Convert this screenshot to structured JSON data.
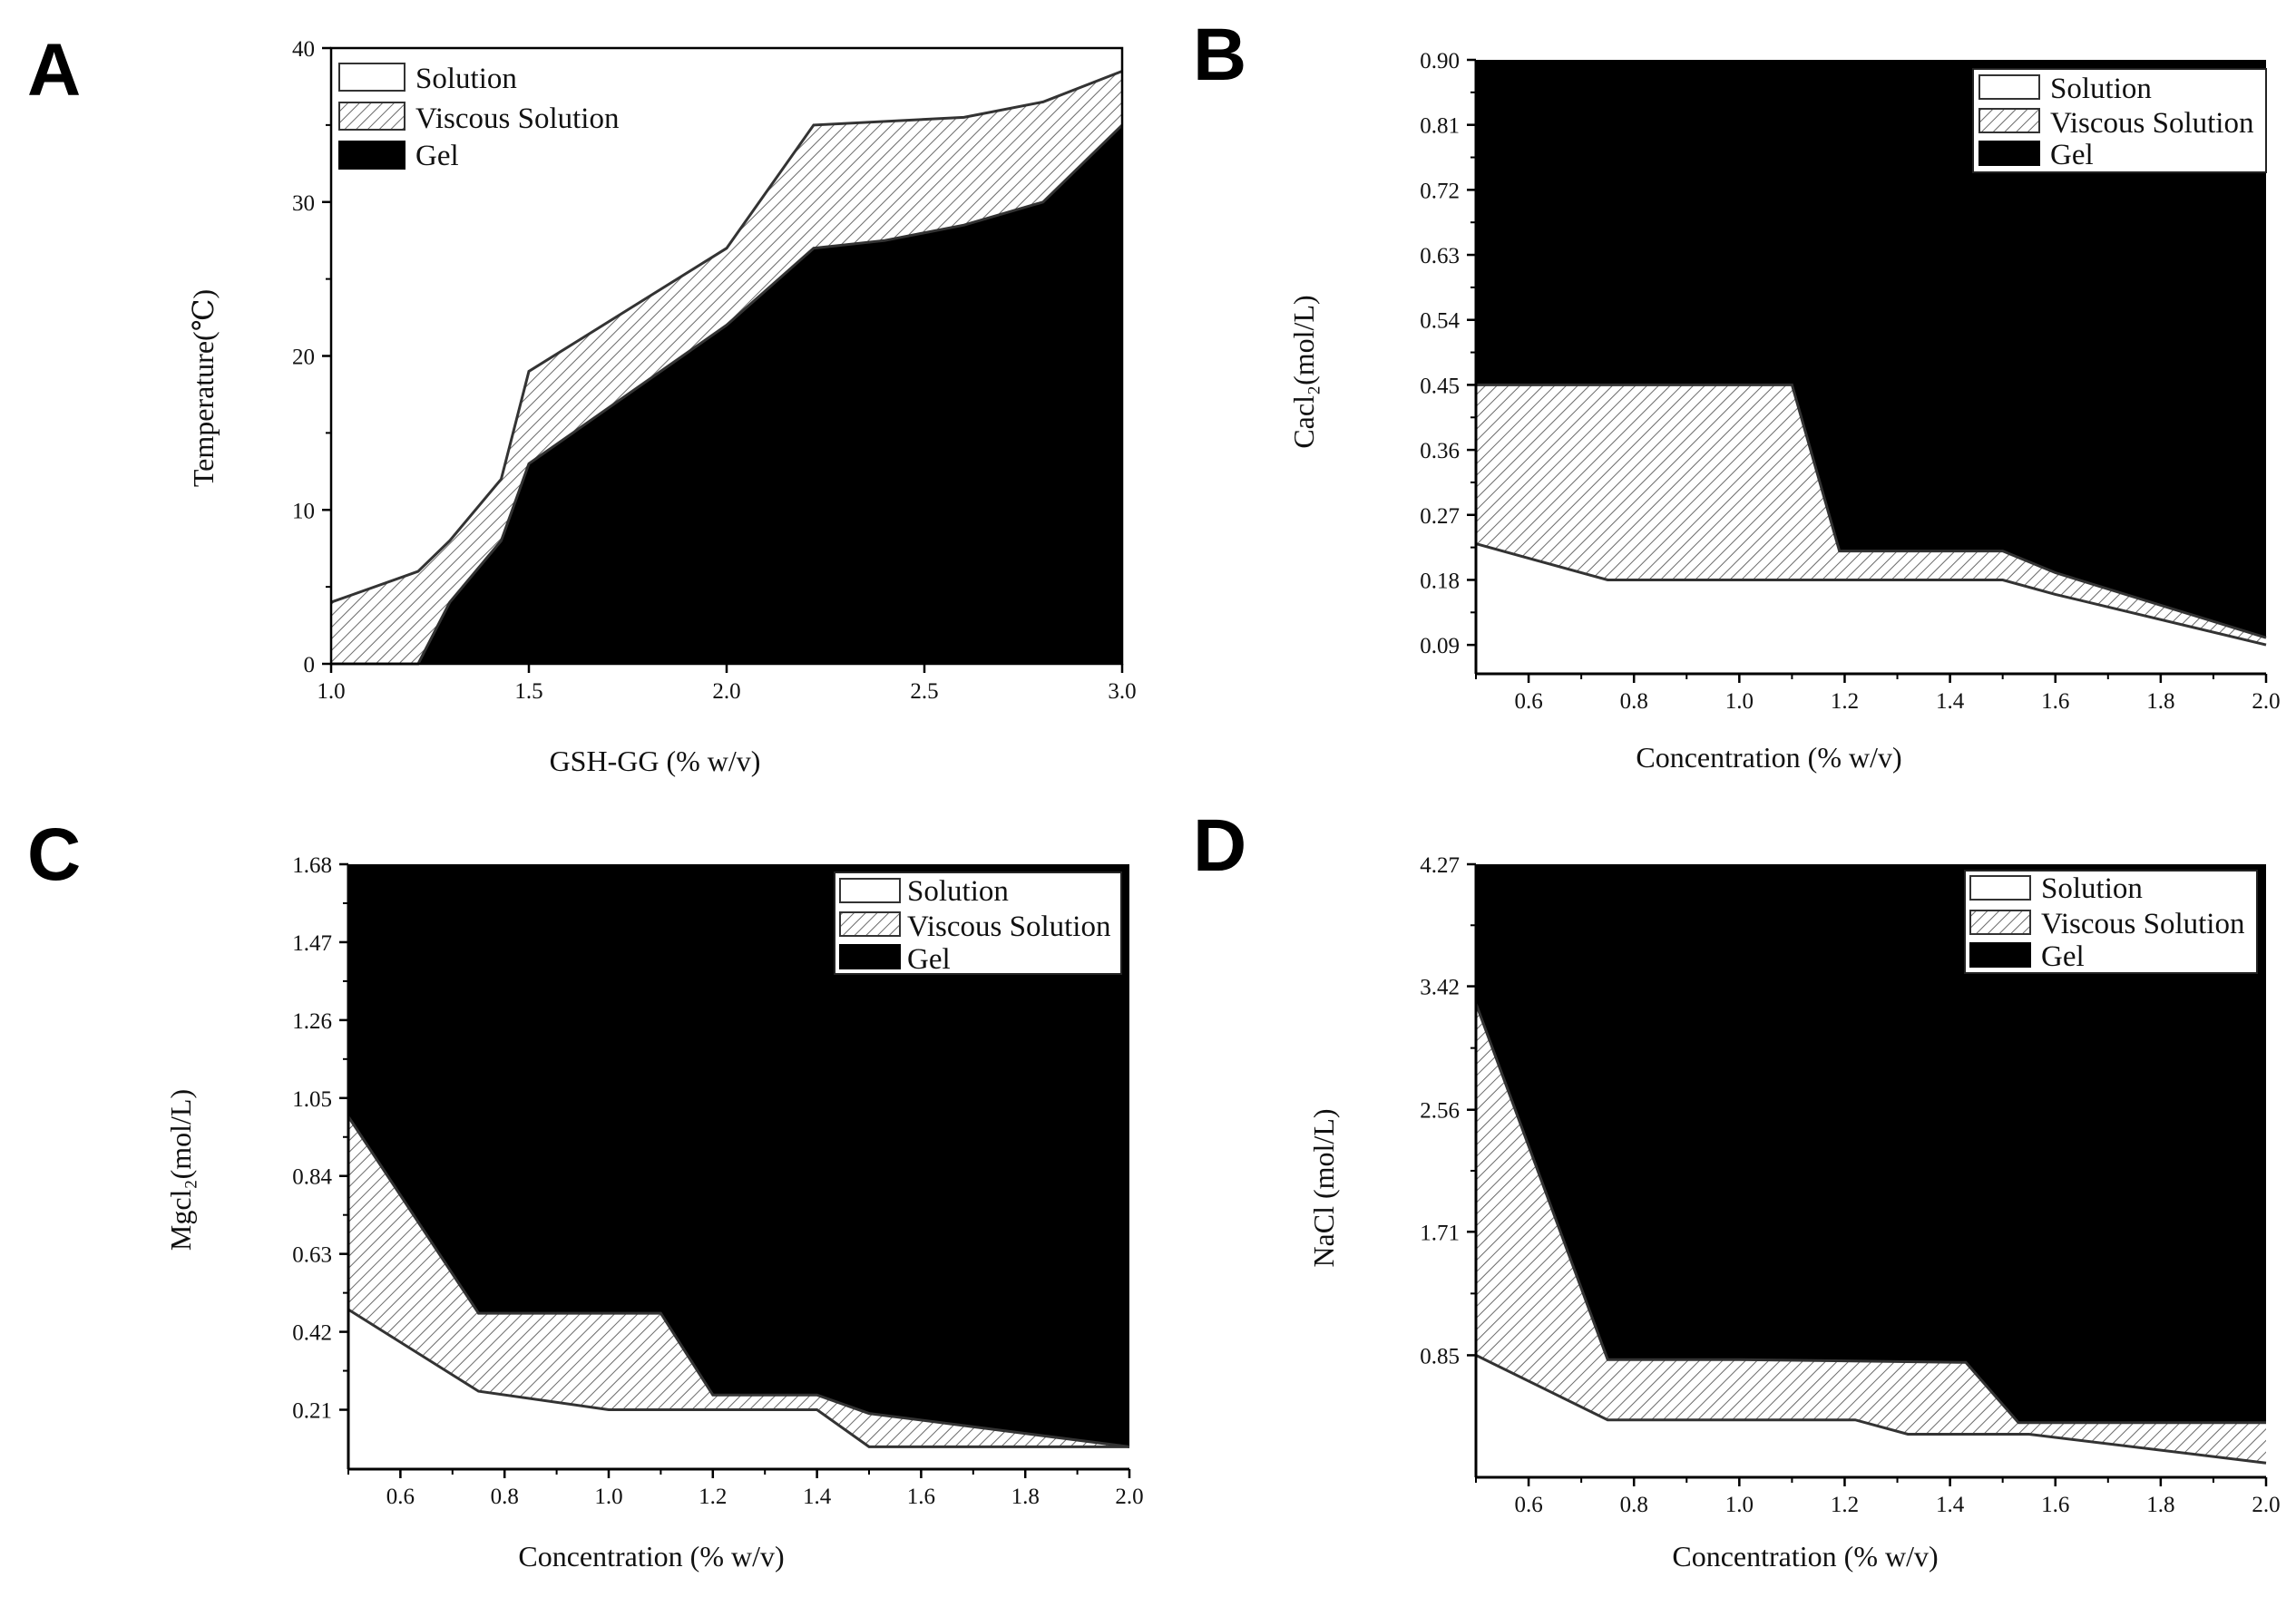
{
  "figure": {
    "panels": [
      "A",
      "B",
      "C",
      "D"
    ]
  },
  "legend": {
    "solution": "Solution",
    "viscous": "Viscous Solution",
    "gel": "Gel"
  },
  "chart_data": [
    {
      "panel": "A",
      "type": "area",
      "xlabel": "GSH-GG (% w/v)",
      "ylabel": "Temperature(℃)",
      "xlim": [
        1.0,
        3.0
      ],
      "ylim": [
        0,
        40
      ],
      "xticks": [
        1.0,
        1.5,
        2.0,
        2.5,
        3.0
      ],
      "xtick_labels": [
        "1.0",
        "1.5",
        "2.0",
        "2.5",
        "3.0"
      ],
      "yticks": [
        0,
        10,
        20,
        30,
        40
      ],
      "ytick_labels": [
        "0",
        "10",
        "20",
        "30",
        "40"
      ],
      "regions_order": "Gel below lower boundary, Viscous Solution between boundaries, Solution above upper boundary",
      "lower_boundary": {
        "x": [
          1.0,
          1.22,
          1.3,
          1.43,
          1.5,
          2.0,
          2.22,
          2.4,
          2.6,
          2.8,
          3.0
        ],
        "y": [
          0,
          0,
          4,
          8,
          13,
          22,
          27,
          27.5,
          28.5,
          30,
          35
        ]
      },
      "upper_boundary": {
        "x": [
          1.0,
          1.22,
          1.3,
          1.43,
          1.5,
          2.0,
          2.22,
          2.6,
          2.8,
          3.0
        ],
        "y": [
          4,
          6,
          8,
          12,
          19,
          27,
          35,
          35.5,
          36.5,
          38.5
        ]
      }
    },
    {
      "panel": "B",
      "type": "area",
      "xlabel": "Concentration (% w/v)",
      "ylabel": "Cacl₂(mol/L)",
      "xlim": [
        0.5,
        2.0
      ],
      "ylim": [
        0.05,
        0.9
      ],
      "xticks": [
        0.6,
        0.8,
        1.0,
        1.2,
        1.4,
        1.6,
        1.8,
        2.0
      ],
      "xtick_labels": [
        "0.6",
        "0.8",
        "1.0",
        "1.2",
        "1.4",
        "1.6",
        "1.8",
        "2.0"
      ],
      "yticks": [
        0.09,
        0.18,
        0.27,
        0.36,
        0.45,
        0.54,
        0.63,
        0.72,
        0.81,
        0.9
      ],
      "ytick_labels": [
        "0.09",
        "0.18",
        "0.27",
        "0.36",
        "0.45",
        "0.54",
        "0.63",
        "0.72",
        "0.81",
        "0.90"
      ],
      "regions_order": "Solution below lower boundary, Viscous Solution between boundaries, Gel above upper boundary",
      "lower_boundary": {
        "x": [
          0.5,
          0.75,
          1.0,
          1.2,
          1.5,
          1.6,
          2.0
        ],
        "y": [
          0.23,
          0.18,
          0.18,
          0.18,
          0.18,
          0.16,
          0.09
        ]
      },
      "upper_boundary": {
        "x": [
          0.5,
          1.1,
          1.19,
          1.5,
          1.6,
          2.0
        ],
        "y": [
          0.45,
          0.45,
          0.22,
          0.22,
          0.19,
          0.1
        ]
      }
    },
    {
      "panel": "C",
      "type": "area",
      "xlabel": "Concentration (% w/v)",
      "ylabel": "Mgcl₂(mol/L)",
      "xlim": [
        0.5,
        2.0
      ],
      "ylim": [
        0.05,
        1.68
      ],
      "xticks": [
        0.6,
        0.8,
        1.0,
        1.2,
        1.4,
        1.6,
        1.8,
        2.0
      ],
      "xtick_labels": [
        "0.6",
        "0.8",
        "1.0",
        "1.2",
        "1.4",
        "1.6",
        "1.8",
        "2.0"
      ],
      "yticks": [
        0.21,
        0.42,
        0.63,
        0.84,
        1.05,
        1.26,
        1.47,
        1.68
      ],
      "ytick_labels": [
        "0.21",
        "0.42",
        "0.63",
        "0.84",
        "1.05",
        "1.26",
        "1.47",
        "1.68"
      ],
      "regions_order": "Solution below lower boundary, Viscous Solution between boundaries, Gel above upper boundary",
      "lower_boundary": {
        "x": [
          0.5,
          0.75,
          1.0,
          1.4,
          1.5,
          2.0
        ],
        "y": [
          0.48,
          0.26,
          0.21,
          0.21,
          0.11,
          0.11
        ]
      },
      "upper_boundary": {
        "x": [
          0.5,
          0.75,
          1.1,
          1.2,
          1.4,
          1.5,
          2.0
        ],
        "y": [
          1.0,
          0.47,
          0.47,
          0.25,
          0.25,
          0.2,
          0.11
        ]
      }
    },
    {
      "panel": "D",
      "type": "area",
      "xlabel": "Concentration (% w/v)",
      "ylabel": "NaCl (mol/L)",
      "xlim": [
        0.5,
        2.0
      ],
      "ylim": [
        0.0,
        4.27
      ],
      "xticks": [
        0.6,
        0.8,
        1.0,
        1.2,
        1.4,
        1.6,
        1.8,
        2.0
      ],
      "xtick_labels": [
        "0.6",
        "0.8",
        "1.0",
        "1.2",
        "1.4",
        "1.6",
        "1.8",
        "2.0"
      ],
      "yticks": [
        0.85,
        1.71,
        2.56,
        3.42,
        4.27
      ],
      "ytick_labels": [
        "0.85",
        "1.71",
        "2.56",
        "3.42",
        "4.27"
      ],
      "regions_order": "Solution below lower boundary, Viscous Solution between boundaries, Gel above upper boundary",
      "lower_boundary": {
        "x": [
          0.5,
          0.75,
          1.0,
          1.22,
          1.32,
          1.55,
          2.0
        ],
        "y": [
          0.85,
          0.4,
          0.4,
          0.4,
          0.3,
          0.3,
          0.1
        ]
      },
      "upper_boundary": {
        "x": [
          0.5,
          0.75,
          1.0,
          1.43,
          1.53,
          2.0
        ],
        "y": [
          3.3,
          0.82,
          0.82,
          0.8,
          0.38,
          0.38
        ]
      }
    }
  ]
}
